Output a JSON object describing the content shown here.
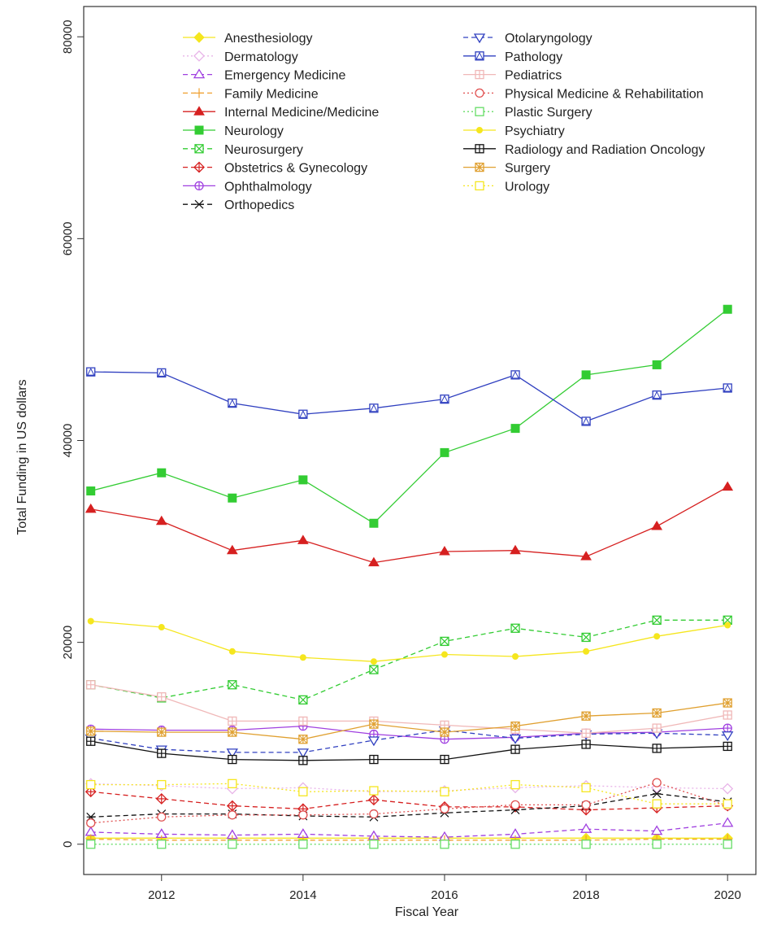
{
  "chart_data": {
    "type": "line",
    "title": "",
    "xlabel": "Fiscal Year",
    "ylabel": "Total Funding in US dollars",
    "xlim": [
      2010.9,
      2020.4
    ],
    "ylim": [
      -3000,
      83000
    ],
    "xticks": [
      2012,
      2014,
      2016,
      2018,
      2020
    ],
    "yticks": [
      0,
      20000,
      40000,
      60000,
      80000
    ],
    "grid": false,
    "legend_position": "top",
    "x": [
      2011,
      2012,
      2013,
      2014,
      2015,
      2016,
      2017,
      2018,
      2019,
      2020
    ],
    "series": [
      {
        "name": "Anesthesiology",
        "color": "#f5e61e",
        "dash": "solid",
        "marker": "diamond-filled",
        "values": [
          600,
          600,
          600,
          600,
          600,
          600,
          600,
          600,
          600,
          600
        ]
      },
      {
        "name": "Dermatology",
        "color": "#e8b4e8",
        "dash": "dotted",
        "marker": "diamond-open",
        "values": [
          6000,
          5800,
          5500,
          5600,
          5200,
          5300,
          5600,
          5800,
          5600,
          5500
        ]
      },
      {
        "name": "Emergency Medicine",
        "color": "#a040e0",
        "dash": "dashed",
        "marker": "triangle-open",
        "values": [
          1200,
          1000,
          900,
          1000,
          800,
          700,
          1000,
          1500,
          1300,
          2100
        ]
      },
      {
        "name": "Family Medicine",
        "color": "#f0a030",
        "dash": "dashed",
        "marker": "plus",
        "values": [
          500,
          400,
          400,
          400,
          400,
          400,
          400,
          400,
          500,
          500
        ]
      },
      {
        "name": " Internal Medicine/Medicine",
        "color": "#d62020",
        "dash": "solid",
        "marker": "triangle-filled",
        "values": [
          33200,
          32000,
          29100,
          30100,
          27900,
          29000,
          29100,
          28500,
          31500,
          35400
        ]
      },
      {
        "name": "Neurology",
        "color": "#33cc33",
        "dash": "solid",
        "marker": "square-filled",
        "values": [
          35000,
          36800,
          34300,
          36100,
          31800,
          38800,
          41200,
          46500,
          47500,
          53000
        ]
      },
      {
        "name": "Neurosurgery",
        "color": "#33cc33",
        "dash": "dashed",
        "marker": "square-x",
        "values": [
          15800,
          14500,
          15800,
          14300,
          17300,
          20100,
          21400,
          20500,
          22200,
          22200
        ]
      },
      {
        "name": "Obstetrics & Gynecology",
        "color": "#d62020",
        "dash": "dashed",
        "marker": "diamond-plus",
        "values": [
          5200,
          4500,
          3800,
          3500,
          4400,
          3700,
          3700,
          3400,
          3600,
          3800
        ]
      },
      {
        "name": "Ophthalmology",
        "color": "#a040e0",
        "dash": "solid",
        "marker": "circle-plus",
        "values": [
          11400,
          11300,
          11300,
          11700,
          10900,
          10400,
          10600,
          11000,
          11100,
          11500
        ]
      },
      {
        "name": "Orthopedics",
        "color": "#111111",
        "dash": "dashed",
        "marker": "star",
        "values": [
          2700,
          3000,
          3000,
          2800,
          2700,
          3100,
          3400,
          3800,
          5000,
          4200
        ]
      },
      {
        "name": "Otolaryngology",
        "color": "#3040c0",
        "dash": "dashed",
        "marker": "triangle-down-open",
        "values": [
          10500,
          9400,
          9100,
          9100,
          10300,
          11300,
          10500,
          10900,
          11000,
          10800
        ]
      },
      {
        "name": "Pathology",
        "color": "#3040c0",
        "dash": "solid",
        "marker": "square-triangle",
        "values": [
          46800,
          46700,
          43700,
          42600,
          43200,
          44100,
          46500,
          41900,
          44500,
          45200
        ]
      },
      {
        "name": "Pediatrics",
        "color": "#f0b8b8",
        "dash": "solid",
        "marker": "square-plus",
        "values": [
          15800,
          14600,
          12200,
          12200,
          12200,
          11800,
          11400,
          11000,
          11500,
          12800
        ]
      },
      {
        "name": "Physical Medicine & Rehabilitation",
        "color": "#e05050",
        "dash": "dotted",
        "marker": "circle-open",
        "values": [
          2100,
          2700,
          2900,
          2900,
          3000,
          3500,
          3900,
          3900,
          6100,
          3800
        ]
      },
      {
        "name": "Plastic Surgery",
        "color": "#66dd66",
        "dash": "dotted",
        "marker": "square-open",
        "values": [
          0,
          0,
          0,
          0,
          0,
          0,
          0,
          0,
          0,
          0
        ]
      },
      {
        "name": "Psychiatry",
        "color": "#f5e61e",
        "dash": "solid",
        "marker": "dot",
        "values": [
          22100,
          21500,
          19100,
          18500,
          18100,
          18800,
          18600,
          19100,
          20600,
          21700
        ]
      },
      {
        "name": "Radiology and Radiation Oncology",
        "color": "#111111",
        "dash": "solid",
        "marker": "square-plus",
        "values": [
          10200,
          9000,
          8400,
          8300,
          8400,
          8400,
          9400,
          9900,
          9500,
          9700
        ]
      },
      {
        "name": "Surgery",
        "color": "#e0a030",
        "dash": "solid",
        "marker": "square-star",
        "values": [
          11200,
          11100,
          11100,
          10400,
          11900,
          11100,
          11700,
          12700,
          13000,
          14000
        ]
      },
      {
        "name": "Urology",
        "color": "#f5e61e",
        "dash": "dotted",
        "marker": "square-open",
        "values": [
          5900,
          5900,
          6000,
          5200,
          5300,
          5200,
          5900,
          5600,
          4000,
          4000
        ]
      }
    ]
  }
}
